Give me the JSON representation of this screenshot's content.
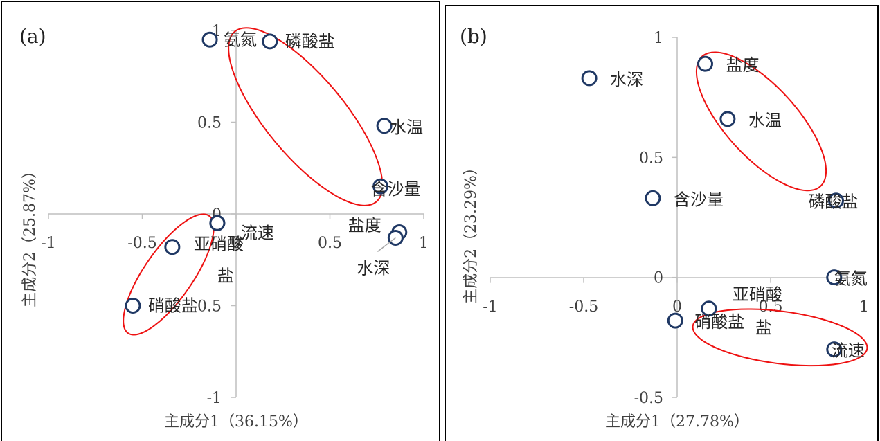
{
  "chart_data": [
    {
      "type": "scatter",
      "panel_label": "(a)",
      "xlabel": "主成分1（36.15%）",
      "ylabel": "主成分2（25.87%）",
      "xlim": [
        -1,
        1
      ],
      "ylim": [
        -1,
        1
      ],
      "xticks": [
        {
          "value": -1,
          "label": "-1"
        },
        {
          "value": -0.5,
          "label": "-0.5"
        },
        {
          "value": 0,
          "label": "0"
        },
        {
          "value": 0.5,
          "label": "0.5"
        },
        {
          "value": 1,
          "label": "1"
        }
      ],
      "yticks": [
        {
          "value": -1,
          "label": "-1"
        },
        {
          "value": -0.5,
          "label": "-0.5"
        },
        {
          "value": 0,
          "label": "0"
        },
        {
          "value": 0.5,
          "label": "0.5"
        },
        {
          "value": 1,
          "label": "1"
        }
      ],
      "points": [
        {
          "label": "氨氮",
          "x": -0.14,
          "y": 0.95
        },
        {
          "label": "磷酸盐",
          "x": 0.18,
          "y": 0.94
        },
        {
          "label": "水温",
          "x": 0.79,
          "y": 0.48
        },
        {
          "label": "含沙量",
          "x": 0.77,
          "y": 0.15
        },
        {
          "label": "流速",
          "x": -0.1,
          "y": -0.05
        },
        {
          "label": "亚硝酸盐",
          "x": -0.1,
          "y": -0.05
        },
        {
          "label": "盐度",
          "x": 0.87,
          "y": -0.1
        },
        {
          "label": "水深",
          "x": 0.85,
          "y": -0.13
        },
        {
          "label": "",
          "x": -0.34,
          "y": -0.18
        },
        {
          "label": "硝酸盐",
          "x": -0.55,
          "y": -0.5
        }
      ],
      "clusters": [
        {
          "cx": 0.37,
          "cy": 0.53,
          "rx": 0.59,
          "ry": 0.21,
          "angle_deg": 50.3
        },
        {
          "cx": -0.36,
          "cy": -0.33,
          "rx": 0.38,
          "ry": 0.13,
          "angle_deg": -55.4
        }
      ],
      "colors": {
        "marker": "#1f3864",
        "cluster": "#ee1111",
        "axis": "#bfbfbf"
      }
    },
    {
      "type": "scatter",
      "panel_label": "(b)",
      "xlabel": "主成分1（27.78%）",
      "ylabel": "主成分2（23.29%）",
      "xlim": [
        -1,
        1
      ],
      "ylim": [
        -0.5,
        1
      ],
      "xticks": [
        {
          "value": -1,
          "label": "-1"
        },
        {
          "value": -0.5,
          "label": "-0.5"
        },
        {
          "value": 0,
          "label": "0"
        },
        {
          "value": 0.5,
          "label": "0.5"
        },
        {
          "value": 1,
          "label": "1"
        }
      ],
      "yticks": [
        {
          "value": -0.5,
          "label": "-0.5"
        },
        {
          "value": 0,
          "label": "0"
        },
        {
          "value": 0.5,
          "label": "0.5"
        },
        {
          "value": 1,
          "label": "1"
        }
      ],
      "points": [
        {
          "label": "水深",
          "x": -0.47,
          "y": 0.83
        },
        {
          "label": "盐度",
          "x": 0.15,
          "y": 0.89
        },
        {
          "label": "水温",
          "x": 0.27,
          "y": 0.66
        },
        {
          "label": "含沙量",
          "x": -0.13,
          "y": 0.33
        },
        {
          "label": "磷酸盐",
          "x": 0.85,
          "y": 0.32
        },
        {
          "label": "氨氮",
          "x": 0.84,
          "y": 0.0
        },
        {
          "label": "亚硝酸盐",
          "x": 0.17,
          "y": -0.13
        },
        {
          "label": "硝酸盐",
          "x": -0.01,
          "y": -0.18
        },
        {
          "label": "流速",
          "x": 0.84,
          "y": -0.3
        }
      ],
      "clusters": [
        {
          "cx": 0.45,
          "cy": 0.65,
          "rx": 0.47,
          "ry": 0.19,
          "angle_deg": 47.6
        },
        {
          "cx": 0.55,
          "cy": -0.25,
          "rx": 0.47,
          "ry": 0.14,
          "angle_deg": 7.3
        }
      ],
      "colors": {
        "marker": "#1f3864",
        "cluster": "#ee1111",
        "axis": "#bfbfbf"
      }
    }
  ]
}
